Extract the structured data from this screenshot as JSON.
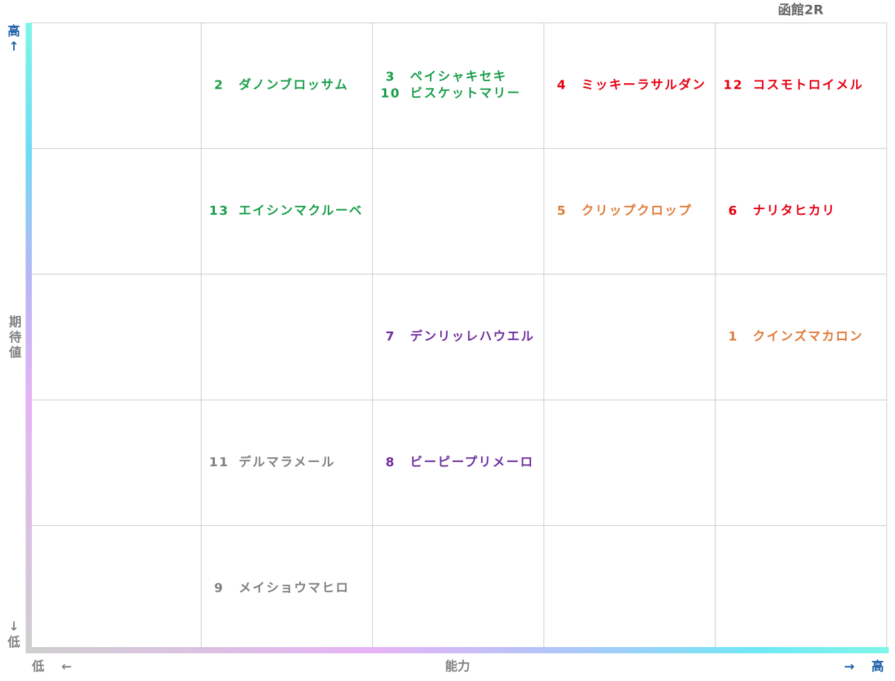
{
  "title": "函館2R",
  "y_axis": {
    "high": "高",
    "high_arrow": "↑",
    "label": "期待値",
    "low_arrow": "↓",
    "low": "低"
  },
  "x_axis": {
    "low": "低",
    "low_arrow": "←",
    "label": "能力",
    "high_arrow": "→",
    "high": "高"
  },
  "grid": [
    [
      [],
      [
        {
          "number": 2,
          "name": "ダノンブロッサム",
          "color": "#1a9e4a"
        }
      ],
      [
        {
          "number": 3,
          "name": "ペイシャキセキ",
          "color": "#1a9e4a"
        },
        {
          "number": 10,
          "name": "ビスケットマリー",
          "color": "#1a9e4a"
        }
      ],
      [
        {
          "number": 4,
          "name": "ミッキーラサルダン",
          "color": "#e60012"
        }
      ],
      [
        {
          "number": 12,
          "name": "コスモトロイメル",
          "color": "#e60012"
        }
      ]
    ],
    [
      [],
      [
        {
          "number": 13,
          "name": "エイシンマクルーベ",
          "color": "#1a9e4a"
        }
      ],
      [],
      [
        {
          "number": 5,
          "name": "クリップクロップ",
          "color": "#e07b39"
        }
      ],
      [
        {
          "number": 6,
          "name": "ナリタヒカリ",
          "color": "#e60012"
        }
      ]
    ],
    [
      [],
      [],
      [
        {
          "number": 7,
          "name": "デンリッレハウエル",
          "color": "#7030a0"
        }
      ],
      [],
      [
        {
          "number": 1,
          "name": "クインズマカロン",
          "color": "#e07b39"
        }
      ]
    ],
    [
      [],
      [
        {
          "number": 11,
          "name": "デルマラメール",
          "color": "#808080"
        }
      ],
      [
        {
          "number": 8,
          "name": "ビーピープリメーロ",
          "color": "#7030a0"
        }
      ],
      [],
      []
    ],
    [
      [],
      [
        {
          "number": 9,
          "name": "メイショウマヒロ",
          "color": "#808080"
        }
      ],
      [],
      [],
      []
    ]
  ]
}
